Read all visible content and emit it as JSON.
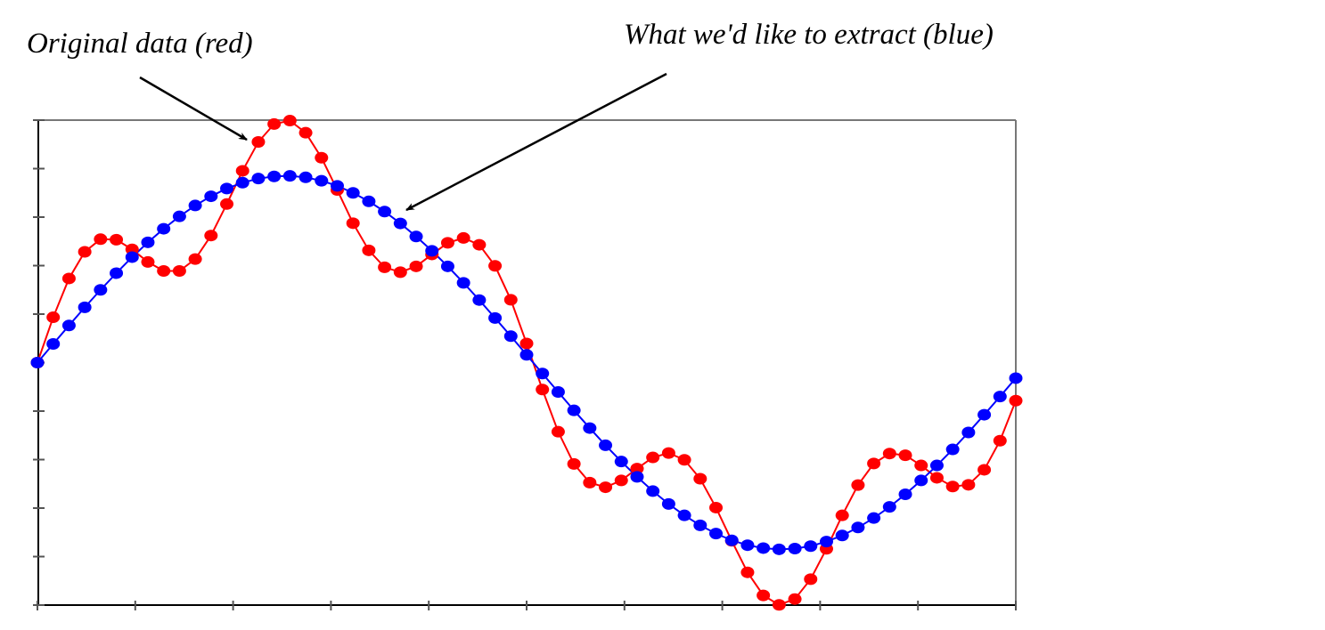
{
  "chart_data": {
    "type": "line",
    "title": "",
    "xlabel": "",
    "ylabel": "",
    "xlim": [
      0,
      6.2
    ],
    "ylim": [
      -1,
      1
    ],
    "x_ticks_count": 10,
    "y_ticks_count": 10,
    "grid": false,
    "x": [
      0,
      0.1,
      0.2,
      0.3,
      0.4,
      0.5,
      0.6,
      0.7,
      0.8,
      0.9,
      1.0,
      1.1,
      1.2,
      1.3,
      1.4,
      1.5,
      1.6,
      1.7,
      1.8,
      1.9,
      2.0,
      2.1,
      2.2,
      2.3,
      2.4,
      2.5,
      2.6,
      2.7,
      2.8,
      2.9,
      3.0,
      3.1,
      3.2,
      3.3,
      3.4,
      3.5,
      3.6,
      3.7,
      3.8,
      3.9,
      4.0,
      4.1,
      4.2,
      4.3,
      4.4,
      4.5,
      4.6,
      4.7,
      4.8,
      4.9,
      5.0,
      5.1,
      5.2,
      5.3,
      5.4,
      5.5,
      5.6,
      5.7,
      5.8,
      5.9,
      6.0,
      6.1,
      6.2
    ],
    "series": [
      {
        "name": "Original data",
        "color": "#ff0000",
        "values": [
          0,
          0.187,
          0.347,
          0.457,
          0.509,
          0.507,
          0.467,
          0.415,
          0.378,
          0.378,
          0.427,
          0.524,
          0.654,
          0.791,
          0.91,
          0.984,
          0.998,
          0.948,
          0.845,
          0.712,
          0.575,
          0.463,
          0.393,
          0.373,
          0.397,
          0.446,
          0.494,
          0.514,
          0.486,
          0.399,
          0.259,
          0.079,
          -0.111,
          -0.285,
          -0.418,
          -0.495,
          -0.514,
          -0.486,
          -0.437,
          -0.391,
          -0.373,
          -0.401,
          -0.479,
          -0.598,
          -0.735,
          -0.865,
          -0.96,
          -0.999,
          -0.975,
          -0.893,
          -0.768,
          -0.63,
          -0.505,
          -0.416,
          -0.375,
          -0.382,
          -0.424,
          -0.475,
          -0.511,
          -0.504,
          -0.442,
          -0.322,
          -0.157
        ]
      },
      {
        "name": "What we'd like to extract",
        "color": "#0000ff",
        "values": [
          0,
          0.077,
          0.153,
          0.228,
          0.3,
          0.369,
          0.435,
          0.496,
          0.552,
          0.603,
          0.648,
          0.686,
          0.718,
          0.742,
          0.759,
          0.768,
          0.77,
          0.764,
          0.75,
          0.729,
          0.7,
          0.665,
          0.623,
          0.574,
          0.52,
          0.461,
          0.397,
          0.329,
          0.258,
          0.184,
          0.109,
          0.032,
          -0.045,
          -0.121,
          -0.197,
          -0.27,
          -0.341,
          -0.408,
          -0.471,
          -0.53,
          -0.583,
          -0.63,
          -0.671,
          -0.705,
          -0.733,
          -0.753,
          -0.765,
          -0.77,
          -0.767,
          -0.757,
          -0.738,
          -0.713,
          -0.68,
          -0.641,
          -0.595,
          -0.543,
          -0.486,
          -0.424,
          -0.358,
          -0.288,
          -0.215,
          -0.14,
          -0.064
        ]
      }
    ],
    "annotations": {
      "red": "Original data (red)",
      "blue": "What we'd like to extract (blue)"
    }
  }
}
